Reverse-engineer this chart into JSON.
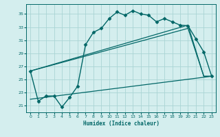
{
  "xlabel": "Humidex (Indice chaleur)",
  "bg_color": "#d4eeee",
  "line_color": "#006666",
  "grid_color": "#aad4d4",
  "xlim": [
    -0.5,
    23.5
  ],
  "ylim": [
    20.0,
    36.5
  ],
  "xticks": [
    0,
    1,
    2,
    3,
    4,
    5,
    6,
    7,
    8,
    9,
    10,
    11,
    12,
    13,
    14,
    15,
    16,
    17,
    18,
    19,
    20,
    21,
    22,
    23
  ],
  "yticks": [
    21,
    23,
    25,
    27,
    29,
    31,
    33,
    35
  ],
  "series": [
    {
      "x": [
        0,
        1,
        2,
        3,
        4,
        5,
        6,
        7,
        8,
        9,
        10,
        11,
        12,
        13,
        14,
        15,
        16,
        17,
        18,
        19,
        20,
        21,
        22,
        23
      ],
      "y": [
        26.3,
        21.7,
        22.5,
        22.5,
        20.8,
        22.3,
        24.0,
        30.3,
        32.2,
        32.8,
        34.3,
        35.3,
        34.8,
        35.5,
        35.0,
        34.8,
        33.8,
        34.3,
        33.8,
        33.3,
        33.2,
        31.2,
        29.2,
        25.5
      ],
      "marker": "D",
      "markersize": 2.5,
      "linewidth": 1.0
    },
    {
      "x": [
        0,
        20,
        22,
        23
      ],
      "y": [
        26.3,
        33.3,
        25.5,
        25.5
      ],
      "marker": null,
      "linewidth": 0.9
    },
    {
      "x": [
        0,
        20,
        22,
        23
      ],
      "y": [
        26.3,
        32.8,
        25.5,
        25.5
      ],
      "marker": null,
      "linewidth": 0.9
    },
    {
      "x": [
        0,
        23
      ],
      "y": [
        22.0,
        25.5
      ],
      "marker": null,
      "linewidth": 0.9
    }
  ]
}
